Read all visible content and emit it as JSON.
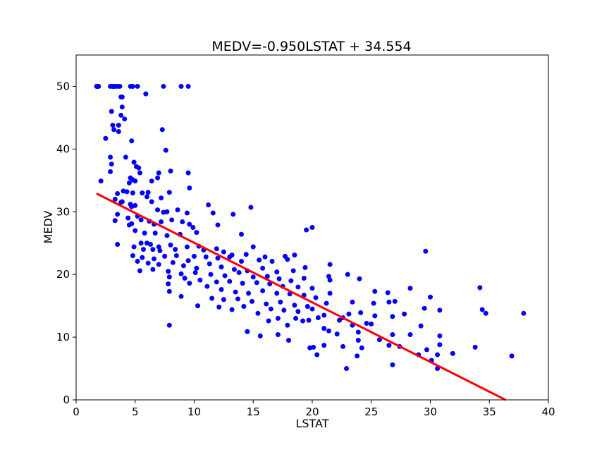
{
  "chart_data": {
    "type": "scatter",
    "title": "MEDV=-0.950LSTAT + 34.554",
    "xlabel": "LSTAT",
    "ylabel": "MEDV",
    "xlim": [
      0,
      40
    ],
    "ylim": [
      0,
      55
    ],
    "xticks": [
      "0",
      "5",
      "10",
      "15",
      "20",
      "25",
      "30",
      "35",
      "40"
    ],
    "yticks": [
      "0",
      "10",
      "20",
      "30",
      "40",
      "50"
    ],
    "grid": false,
    "legend": "none",
    "point_color": "#0000ff",
    "line_color": "#ff0000",
    "fit_line": {
      "slope": -0.95,
      "intercept": 34.554,
      "x_start": 1.73
    },
    "points": [
      [
        1.73,
        50
      ],
      [
        1.8,
        50
      ],
      [
        1.9,
        50
      ],
      [
        2.9,
        50
      ],
      [
        3.1,
        50
      ],
      [
        3.2,
        50
      ],
      [
        3.3,
        50
      ],
      [
        3.5,
        50
      ],
      [
        3.7,
        50
      ],
      [
        4.6,
        50
      ],
      [
        4.8,
        50
      ],
      [
        5.2,
        50
      ],
      [
        7.4,
        50
      ],
      [
        8.9,
        50
      ],
      [
        9.5,
        50
      ],
      [
        5.9,
        48.8
      ],
      [
        3.8,
        48.3
      ],
      [
        3.9,
        48.3
      ],
      [
        3.9,
        46.7
      ],
      [
        3.0,
        46.0
      ],
      [
        3.8,
        45.4
      ],
      [
        4.1,
        44.8
      ],
      [
        3.1,
        43.8
      ],
      [
        3.6,
        43.8
      ],
      [
        3.2,
        43.1
      ],
      [
        3.6,
        42.8
      ],
      [
        7.3,
        43.1
      ],
      [
        2.5,
        41.7
      ],
      [
        4.7,
        41.3
      ],
      [
        7.6,
        39.8
      ],
      [
        2.9,
        38.7
      ],
      [
        4.2,
        38.7
      ],
      [
        4.9,
        37.9
      ],
      [
        5.1,
        37.2
      ],
      [
        3.0,
        37.6
      ],
      [
        5.3,
        37.0
      ],
      [
        2.9,
        36.4
      ],
      [
        5.4,
        36.2
      ],
      [
        7.0,
        36.2
      ],
      [
        8.0,
        36.5
      ],
      [
        9.5,
        36.2
      ],
      [
        6.9,
        35.4
      ],
      [
        4.6,
        35.4
      ],
      [
        4.8,
        35.1
      ],
      [
        6.4,
        34.9
      ],
      [
        2.1,
        34.9
      ],
      [
        4.5,
        34.6
      ],
      [
        5.0,
        34.9
      ],
      [
        9.6,
        33.8
      ],
      [
        4.0,
        33.3
      ],
      [
        4.3,
        33.2
      ],
      [
        5.6,
        33.0
      ],
      [
        6.1,
        33.1
      ],
      [
        6.0,
        32.4
      ],
      [
        3.5,
        32.9
      ],
      [
        3.3,
        32.0
      ],
      [
        4.8,
        33.0
      ],
      [
        7.2,
        32.2
      ],
      [
        7.9,
        33.1
      ],
      [
        6.4,
        31.6
      ],
      [
        3.9,
        31.6
      ],
      [
        3.8,
        31.5
      ],
      [
        4.6,
        31.2
      ],
      [
        5.0,
        31.0
      ],
      [
        4.7,
        30.8
      ],
      [
        6.9,
        30.3
      ],
      [
        7.4,
        29.9
      ],
      [
        7.7,
        30.0
      ],
      [
        8.6,
        30.3
      ],
      [
        9.4,
        29.8
      ],
      [
        11.2,
        31.1
      ],
      [
        11.6,
        29.8
      ],
      [
        13.3,
        29.6
      ],
      [
        14.8,
        30.7
      ],
      [
        3.5,
        29.6
      ],
      [
        4.4,
        29.0
      ],
      [
        5.2,
        29.3
      ],
      [
        5.5,
        28.7
      ],
      [
        6.2,
        28.5
      ],
      [
        7.2,
        28.4
      ],
      [
        8.1,
        28.7
      ],
      [
        3.3,
        28.6
      ],
      [
        4.7,
        28.1
      ],
      [
        4.5,
        27.9
      ],
      [
        6.6,
        28.0
      ],
      [
        9.0,
        28.4
      ],
      [
        9.9,
        27.5
      ],
      [
        9.6,
        28.0
      ],
      [
        12.0,
        27.9
      ],
      [
        19.5,
        27.1
      ],
      [
        20.0,
        27.5
      ],
      [
        5.0,
        27.0
      ],
      [
        5.8,
        26.6
      ],
      [
        6.7,
        26.6
      ],
      [
        7.7,
        26.2
      ],
      [
        8.8,
        26.4
      ],
      [
        10.2,
        26.7
      ],
      [
        14.0,
        26.4
      ],
      [
        5.5,
        25.0
      ],
      [
        6.0,
        25.0
      ],
      [
        6.3,
        24.8
      ],
      [
        7.0,
        24.4
      ],
      [
        8.0,
        24.7
      ],
      [
        3.5,
        24.8
      ],
      [
        4.9,
        24.4
      ],
      [
        5.7,
        24.0
      ],
      [
        6.5,
        24.0
      ],
      [
        7.1,
        23.8
      ],
      [
        8.4,
        24.0
      ],
      [
        9.4,
        24.4
      ],
      [
        10.4,
        24.5
      ],
      [
        10.8,
        23.9
      ],
      [
        11.9,
        24.1
      ],
      [
        12.5,
        23.6
      ],
      [
        13.2,
        23.1
      ],
      [
        14.4,
        23.2
      ],
      [
        15.0,
        24.4
      ],
      [
        16.0,
        22.8
      ],
      [
        17.7,
        22.9
      ],
      [
        18.5,
        23.1
      ],
      [
        29.6,
        23.7
      ],
      [
        4.8,
        23.0
      ],
      [
        5.6,
        22.7
      ],
      [
        6.6,
        22.5
      ],
      [
        7.5,
        22.9
      ],
      [
        8.5,
        23.0
      ],
      [
        9.5,
        22.2
      ],
      [
        10.0,
        22.9
      ],
      [
        11.0,
        22.8
      ],
      [
        12.0,
        22.6
      ],
      [
        13.0,
        22.8
      ],
      [
        14.0,
        22.1
      ],
      [
        15.5,
        22.3
      ],
      [
        16.6,
        22.1
      ],
      [
        17.9,
        22.4
      ],
      [
        21.5,
        21.6
      ],
      [
        5.2,
        22.1
      ],
      [
        6.1,
        21.8
      ],
      [
        7.0,
        21.6
      ],
      [
        8.2,
        21.9
      ],
      [
        9.1,
        21.4
      ],
      [
        10.2,
        21.0
      ],
      [
        11.3,
        21.7
      ],
      [
        12.3,
        21.2
      ],
      [
        13.4,
        20.8
      ],
      [
        14.5,
        20.6
      ],
      [
        15.8,
        21.0
      ],
      [
        17.0,
        20.4
      ],
      [
        18.4,
        20.6
      ],
      [
        19.4,
        21.1
      ],
      [
        5.4,
        20.6
      ],
      [
        6.5,
        20.8
      ],
      [
        7.8,
        20.5
      ],
      [
        8.9,
        20.1
      ],
      [
        10.1,
        20.3
      ],
      [
        11.4,
        20.0
      ],
      [
        12.6,
        19.8
      ],
      [
        13.8,
        20.3
      ],
      [
        15.0,
        19.6
      ],
      [
        16.2,
        19.7
      ],
      [
        17.2,
        19.3
      ],
      [
        18.2,
        19.0
      ],
      [
        19.3,
        19.4
      ],
      [
        21.4,
        19.7
      ],
      [
        21.5,
        19.1
      ],
      [
        23.0,
        20.0
      ],
      [
        24.0,
        19.3
      ],
      [
        7.9,
        19.6
      ],
      [
        9.2,
        19.4
      ],
      [
        10.5,
        19.1
      ],
      [
        11.9,
        18.8
      ],
      [
        13.0,
        18.9
      ],
      [
        14.1,
        18.6
      ],
      [
        15.3,
        18.7
      ],
      [
        16.4,
        18.5
      ],
      [
        17.5,
        18.1
      ],
      [
        18.8,
        18.0
      ],
      [
        20.0,
        17.8
      ],
      [
        7.8,
        18.5
      ],
      [
        9.6,
        18.6
      ],
      [
        11.1,
        18.1
      ],
      [
        12.3,
        17.6
      ],
      [
        13.5,
        17.2
      ],
      [
        14.6,
        17.0
      ],
      [
        15.8,
        17.4
      ],
      [
        17.0,
        17.0
      ],
      [
        18.1,
        16.9
      ],
      [
        19.3,
        16.7
      ],
      [
        20.3,
        16.3
      ],
      [
        21.5,
        17.0
      ],
      [
        25.3,
        17.3
      ],
      [
        26.4,
        17.1
      ],
      [
        28.3,
        17.8
      ],
      [
        34.2,
        17.9
      ],
      [
        7.9,
        17.3
      ],
      [
        8.9,
        16.5
      ],
      [
        11.5,
        16.2
      ],
      [
        12.5,
        16.0
      ],
      [
        13.7,
        16.1
      ],
      [
        14.9,
        15.7
      ],
      [
        16.1,
        15.3
      ],
      [
        17.3,
        15.6
      ],
      [
        18.5,
        15.1
      ],
      [
        19.6,
        14.9
      ],
      [
        21.2,
        15.4
      ],
      [
        23.4,
        15.6
      ],
      [
        25.2,
        15.4
      ],
      [
        26.5,
        15.6
      ],
      [
        27.0,
        15.7
      ],
      [
        30.0,
        16.4
      ],
      [
        10.3,
        15.0
      ],
      [
        12.1,
        14.8
      ],
      [
        13.2,
        14.4
      ],
      [
        14.2,
        14.9
      ],
      [
        15.4,
        13.8
      ],
      [
        16.5,
        14.5
      ],
      [
        17.6,
        14.3
      ],
      [
        18.8,
        14.1
      ],
      [
        20.0,
        14.5
      ],
      [
        21.0,
        13.5
      ],
      [
        22.6,
        13.1
      ],
      [
        23.1,
        13.7
      ],
      [
        24.1,
        13.9
      ],
      [
        25.3,
        13.4
      ],
      [
        26.8,
        13.3
      ],
      [
        27.8,
        13.7
      ],
      [
        29.5,
        14.6
      ],
      [
        30.8,
        14.3
      ],
      [
        34.4,
        14.4
      ],
      [
        34.7,
        13.8
      ],
      [
        37.9,
        13.8
      ],
      [
        7.9,
        11.9
      ],
      [
        14.5,
        10.9
      ],
      [
        15.6,
        10.2
      ],
      [
        16.3,
        12.6
      ],
      [
        17.1,
        13.0
      ],
      [
        17.9,
        11.9
      ],
      [
        18.6,
        13.0
      ],
      [
        19.2,
        12.6
      ],
      [
        19.7,
        12.7
      ],
      [
        20.5,
        13.1
      ],
      [
        21.0,
        11.4
      ],
      [
        21.4,
        11.0
      ],
      [
        22.1,
        10.5
      ],
      [
        23.4,
        11.9
      ],
      [
        23.9,
        10.8
      ],
      [
        24.6,
        12.2
      ],
      [
        25.0,
        12.1
      ],
      [
        26.8,
        10.4
      ],
      [
        28.3,
        10.4
      ],
      [
        29.2,
        11.8
      ],
      [
        30.8,
        10.2
      ],
      [
        17.1,
        10.4
      ],
      [
        18.0,
        9.5
      ],
      [
        22.3,
        12.7
      ],
      [
        22.6,
        8.5
      ],
      [
        20.1,
        8.4
      ],
      [
        21.0,
        8.7
      ],
      [
        23.9,
        9.5
      ],
      [
        24.2,
        8.3
      ],
      [
        25.7,
        9.6
      ],
      [
        26.5,
        8.7
      ],
      [
        27.4,
        8.5
      ],
      [
        29.7,
        8.0
      ],
      [
        30.8,
        8.8
      ],
      [
        19.8,
        8.3
      ],
      [
        20.4,
        7.2
      ],
      [
        23.8,
        7.0
      ],
      [
        26.8,
        5.6
      ],
      [
        29.0,
        7.2
      ],
      [
        30.6,
        7.2
      ],
      [
        31.9,
        7.4
      ],
      [
        33.8,
        8.4
      ],
      [
        36.9,
        7.0
      ],
      [
        22.9,
        5.0
      ],
      [
        30.1,
        6.3
      ],
      [
        30.6,
        5.0
      ]
    ]
  }
}
